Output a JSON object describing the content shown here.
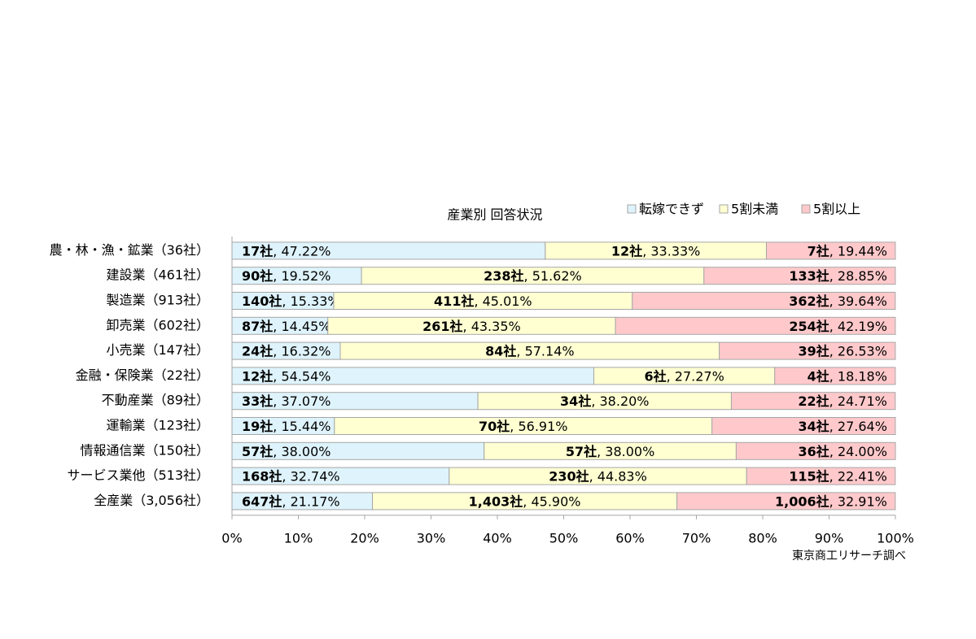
{
  "chart_data": {
    "type": "stacked-bar-horizontal",
    "title": "産業別 回答状況",
    "source": "東京商工リサーチ調べ",
    "categories": [
      "農・林・漁・鉱業（36社）",
      "建設業（461社）",
      "製造業（913社）",
      "卸売業（602社）",
      "小売業（147社）",
      "金融・保険業（22社）",
      "不動産業（89社）",
      "運輸業（123社）",
      "情報通信業（150社）",
      "サービス業他（513社）",
      "全産業（3,056社）"
    ],
    "xlim": [
      0,
      100
    ],
    "xticks": [
      {
        "value": 0,
        "label": "0%"
      },
      {
        "value": 10,
        "label": "10%"
      },
      {
        "value": 20,
        "label": "20%"
      },
      {
        "value": 30,
        "label": "30%"
      },
      {
        "value": 40,
        "label": "40%"
      },
      {
        "value": 50,
        "label": "50%"
      },
      {
        "value": 60,
        "label": "60%"
      },
      {
        "value": 70,
        "label": "70%"
      },
      {
        "value": 80,
        "label": "80%"
      },
      {
        "value": 90,
        "label": "90%"
      },
      {
        "value": 100,
        "label": "100%"
      }
    ],
    "legend": "top-right",
    "series": [
      {
        "name": "転嫁できず",
        "color": "#def3fb",
        "values": [
          47.22,
          19.52,
          15.33,
          14.45,
          16.32,
          54.54,
          37.07,
          15.44,
          38.0,
          32.74,
          21.17
        ],
        "count_labels": [
          "17社",
          "90社",
          "140社",
          "87社",
          "24社",
          "12社",
          "33社",
          "19社",
          "57社",
          "168社",
          "647社"
        ],
        "value_labels": [
          ", 47.22%",
          ", 19.52%",
          ", 15.33%",
          ", 14.45%",
          ", 16.32%",
          ", 54.54%",
          ", 37.07%",
          ", 15.44%",
          ", 38.00%",
          ", 32.74%",
          ", 21.17%"
        ]
      },
      {
        "name": "5割未満",
        "color": "#ffffd2",
        "values": [
          33.33,
          51.62,
          45.01,
          43.35,
          57.14,
          27.27,
          38.2,
          56.91,
          38.0,
          44.83,
          45.9
        ],
        "count_labels": [
          "12社",
          "238社",
          "411社",
          "261社",
          "84社",
          "6社",
          "34社",
          "70社",
          "57社",
          "230社",
          "1,403社"
        ],
        "value_labels": [
          ", 33.33%",
          ", 51.62%",
          ", 45.01%",
          ", 43.35%",
          ", 57.14%",
          ", 27.27%",
          ", 38.20%",
          ", 56.91%",
          ", 38.00%",
          ", 44.83%",
          ", 45.90%"
        ]
      },
      {
        "name": "5割以上",
        "color": "#ffc9cb",
        "values": [
          19.44,
          28.85,
          39.64,
          42.19,
          26.53,
          18.18,
          24.71,
          27.64,
          24.0,
          22.41,
          32.91
        ],
        "count_labels": [
          "7社",
          "133社",
          "362社",
          "254社",
          "39社",
          "4社",
          "22社",
          "34社",
          "36社",
          "115社",
          "1,006社"
        ],
        "value_labels": [
          ", 19.44%",
          ", 28.85%",
          ", 39.64%",
          ", 42.19%",
          ", 26.53%",
          ", 18.18%",
          ", 24.71%",
          ", 27.64%",
          ", 24.00%",
          ", 22.41%",
          ", 32.91%"
        ]
      }
    ]
  }
}
